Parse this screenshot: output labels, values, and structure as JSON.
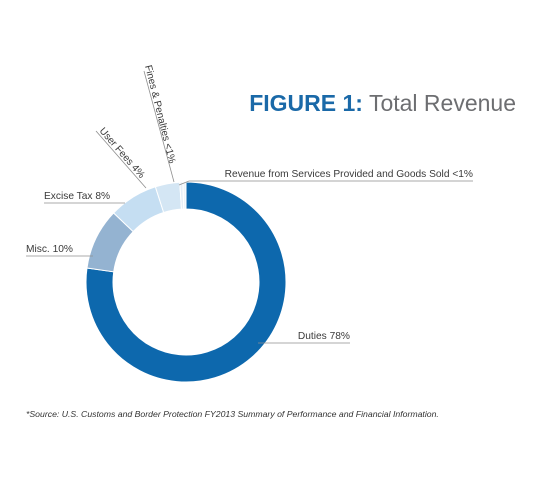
{
  "chart_data": {
    "type": "pie",
    "style": "donut",
    "title_prefix": "FIGURE 1:",
    "title": "Total Revenue",
    "categories": [
      "Duties",
      "Misc.",
      "Excise Tax",
      "User Fees",
      "Fines & Penalties",
      "Revenue from Services Provided and Goods Sold"
    ],
    "values": [
      78,
      10,
      8,
      4,
      0.5,
      0.5
    ],
    "labels": [
      "Duties 78%",
      "Misc. 10%",
      "Excise Tax 8%",
      "User Fees 4%",
      "Fines & Penalties <1%",
      "Revenue from Services Provided and Goods Sold <1%"
    ],
    "colors": [
      "#0d68ad",
      "#94b3d1",
      "#c5def2",
      "#d4e6f4",
      "#e6eef6",
      "#eef3f8"
    ],
    "source_note": "*Source: U.S. Customs and Border Protection FY2013 Summary of Performance and Financial Information."
  },
  "colors": {
    "title_blue": "#1a69a8",
    "title_gray": "#6d6e71",
    "label_text": "#3a3a3a",
    "leader_line": "#8f8f8f",
    "source_text": "#333333"
  }
}
